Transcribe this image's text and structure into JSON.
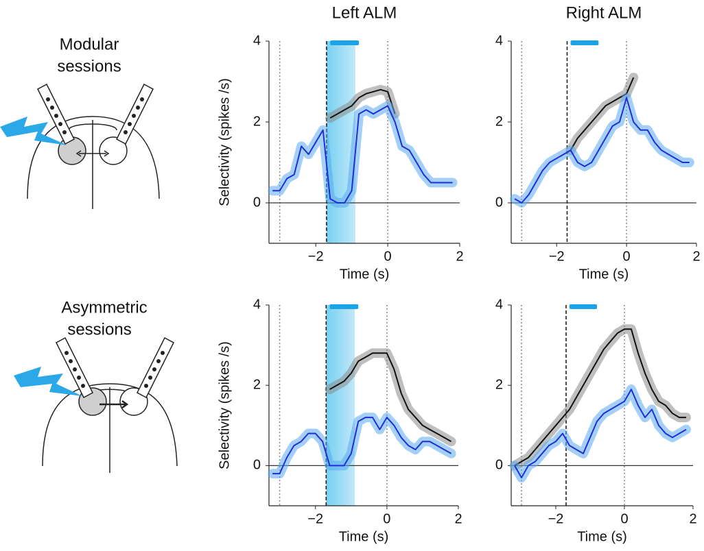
{
  "row_labels": [
    [
      "Modular",
      "sessions"
    ],
    [
      "Asymmetric",
      "sessions"
    ]
  ],
  "chart_data": [
    {
      "type": "line",
      "title": "Left ALM",
      "y_label": "Selectivity (spikes /s)",
      "x_label": "Time (s)",
      "x": [
        -3.2,
        -3.0,
        -2.8,
        -2.6,
        -2.4,
        -2.2,
        -2.0,
        -1.8,
        -1.6,
        -1.4,
        -1.2,
        -1.0,
        -0.8,
        -0.6,
        -0.4,
        -0.2,
        0,
        0.2,
        0.4,
        0.6,
        0.8,
        1.0,
        1.2,
        1.4,
        1.6,
        1.8
      ],
      "series": [
        {
          "color": "#111111",
          "values": [
            null,
            null,
            null,
            null,
            null,
            null,
            null,
            null,
            2.1,
            2.2,
            2.3,
            2.4,
            2.6,
            2.7,
            2.75,
            2.8,
            2.75,
            2.2,
            null,
            null,
            null,
            null,
            null,
            null,
            null,
            null
          ]
        },
        {
          "color": "#1f2fd6",
          "values": [
            0.3,
            0.3,
            0.6,
            0.7,
            1.4,
            1.2,
            1.5,
            1.8,
            0.1,
            0,
            0,
            0.3,
            2.2,
            2.3,
            2.2,
            2.3,
            2.4,
            2.0,
            1.4,
            1.3,
            1.0,
            0.7,
            0.5,
            0.5,
            0.5,
            0.5
          ]
        }
      ],
      "xlim": [
        -3.3,
        2
      ],
      "ylim": [
        -1,
        4
      ],
      "xticks": [
        {
          "value": -2,
          "label": "−2"
        },
        0,
        2
      ],
      "yticks": [
        0,
        2,
        4
      ],
      "event_lines": [
        -3,
        0
      ],
      "stim_window": [
        -1.7,
        -0.9
      ],
      "shade_stim": true,
      "laser_bar": [
        -1.6,
        -0.8
      ]
    },
    {
      "type": "line",
      "title": "Right ALM",
      "x_label": "Time (s)",
      "x": [
        -3.2,
        -3.0,
        -2.8,
        -2.6,
        -2.4,
        -2.2,
        -2.0,
        -1.8,
        -1.6,
        -1.4,
        -1.2,
        -1.0,
        -0.8,
        -0.6,
        -0.4,
        -0.2,
        0,
        0.2,
        0.4,
        0.6,
        0.8,
        1.0,
        1.2,
        1.4,
        1.6,
        1.8
      ],
      "series": [
        {
          "color": "#111111",
          "values": [
            null,
            null,
            null,
            null,
            null,
            null,
            null,
            null,
            1.3,
            1.6,
            1.8,
            2.0,
            2.2,
            2.4,
            2.5,
            2.6,
            2.7,
            3.1,
            null,
            null,
            null,
            null,
            null,
            null,
            null,
            null
          ]
        },
        {
          "color": "#1f2fd6",
          "values": [
            0.1,
            0.0,
            0.2,
            0.5,
            0.8,
            1.0,
            1.1,
            1.2,
            1.3,
            1.0,
            0.9,
            1.0,
            1.3,
            1.6,
            1.9,
            2.0,
            2.6,
            2.0,
            1.8,
            1.8,
            1.5,
            1.3,
            1.2,
            1.1,
            1.0,
            1.0
          ]
        }
      ],
      "xlim": [
        -3.3,
        2
      ],
      "ylim": [
        -1,
        4
      ],
      "xticks": [
        {
          "value": -2,
          "label": "−2"
        },
        0,
        2
      ],
      "yticks": [
        0,
        2,
        4
      ],
      "event_lines": [
        -3,
        0
      ],
      "stim_window": [
        -1.7,
        -0.9
      ],
      "shade_stim": false,
      "laser_bar": [
        -1.6,
        -0.8
      ]
    },
    {
      "type": "line",
      "y_label": "Selectivity (spikes /s)",
      "x_label": "Time (s)",
      "x": [
        -3.2,
        -3.0,
        -2.8,
        -2.6,
        -2.4,
        -2.2,
        -2.0,
        -1.8,
        -1.6,
        -1.4,
        -1.2,
        -1.0,
        -0.8,
        -0.6,
        -0.4,
        -0.2,
        0,
        0.2,
        0.4,
        0.6,
        0.8,
        1.0,
        1.2,
        1.4,
        1.6,
        1.8
      ],
      "series": [
        {
          "color": "#111111",
          "values": [
            null,
            null,
            null,
            null,
            null,
            null,
            null,
            null,
            1.9,
            2.0,
            2.1,
            2.3,
            2.6,
            2.7,
            2.8,
            2.8,
            2.8,
            2.4,
            1.8,
            1.4,
            1.2,
            1.0,
            0.9,
            0.8,
            0.7,
            0.6
          ]
        },
        {
          "color": "#1f2fd6",
          "values": [
            -0.2,
            -0.2,
            0.2,
            0.5,
            0.6,
            0.8,
            0.8,
            0.6,
            0,
            0,
            0,
            0.3,
            1.1,
            1.2,
            1.2,
            0.9,
            1.2,
            1.0,
            0.7,
            0.5,
            0.4,
            0.6,
            0.6,
            0.5,
            0.4,
            0.3
          ]
        }
      ],
      "xlim": [
        -3.3,
        2
      ],
      "ylim": [
        -1,
        4
      ],
      "xticks": [
        {
          "value": -2,
          "label": "−2"
        },
        0,
        2
      ],
      "yticks": [
        0,
        2,
        4
      ],
      "event_lines": [
        -3,
        0
      ],
      "stim_window": [
        -1.7,
        -0.9
      ],
      "shade_stim": true,
      "laser_bar": [
        -1.6,
        -0.8
      ]
    },
    {
      "type": "line",
      "x_label": "Time (s)",
      "x": [
        -3.2,
        -3.0,
        -2.8,
        -2.6,
        -2.4,
        -2.2,
        -2.0,
        -1.8,
        -1.6,
        -1.4,
        -1.2,
        -1.0,
        -0.8,
        -0.6,
        -0.4,
        -0.2,
        0,
        0.2,
        0.4,
        0.6,
        0.8,
        1.0,
        1.2,
        1.4,
        1.6,
        1.8
      ],
      "series": [
        {
          "color": "#111111",
          "values": [
            0.0,
            0.1,
            0.2,
            0.4,
            0.6,
            0.8,
            1.0,
            1.2,
            1.4,
            1.7,
            2.0,
            2.3,
            2.6,
            2.9,
            3.1,
            3.3,
            3.4,
            3.4,
            2.8,
            2.3,
            1.9,
            1.6,
            1.5,
            1.3,
            1.2,
            1.2
          ]
        },
        {
          "color": "#1f2fd6",
          "values": [
            0.0,
            -0.3,
            0.0,
            0.1,
            0.3,
            0.5,
            0.6,
            0.8,
            0.5,
            0.4,
            0.3,
            0.7,
            1.1,
            1.3,
            1.4,
            1.5,
            1.6,
            1.9,
            1.5,
            1.2,
            1.4,
            1.0,
            0.8,
            0.7,
            0.8,
            0.9
          ]
        }
      ],
      "xlim": [
        -3.3,
        2
      ],
      "ylim": [
        -1,
        4
      ],
      "xticks": [
        {
          "value": -2,
          "label": "−2"
        },
        0,
        2
      ],
      "yticks": [
        0,
        2,
        4
      ],
      "event_lines": [
        -3,
        0
      ],
      "stim_window": [
        -1.7,
        -0.9
      ],
      "shade_stim": false,
      "laser_bar": [
        -1.6,
        -0.8
      ]
    }
  ]
}
